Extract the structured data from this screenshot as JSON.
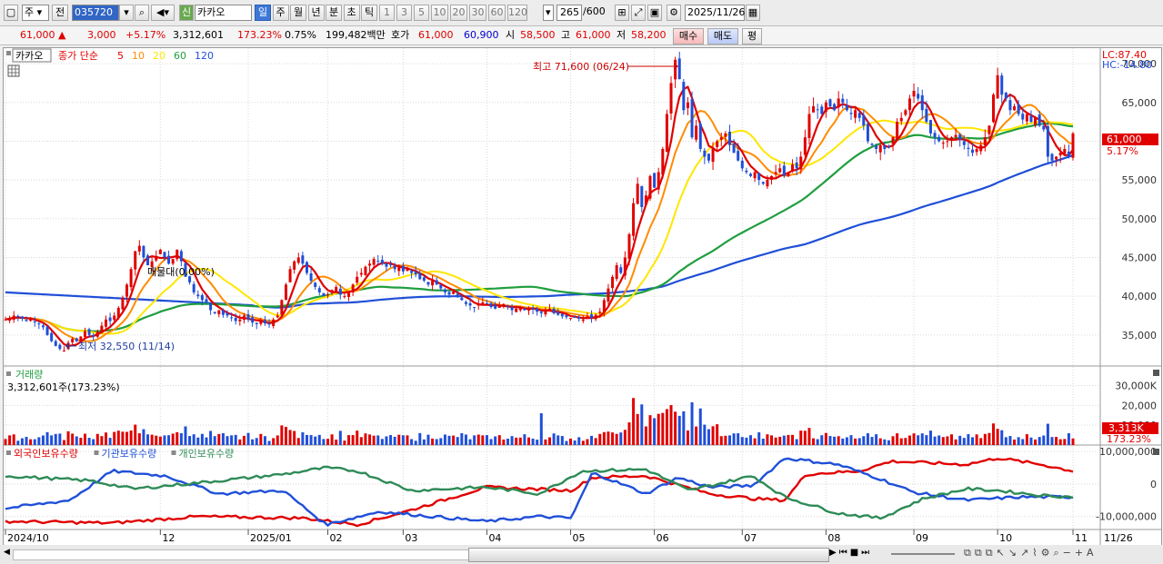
{
  "toolbar": {
    "period_select": "주",
    "prev_label": "전",
    "code": "035720",
    "credit_badge": "신",
    "stock_name": "카카오",
    "period_buttons": [
      "일",
      "주",
      "월",
      "년",
      "분",
      "초",
      "틱"
    ],
    "active_period": "일",
    "interval_buttons": [
      "1",
      "3",
      "5",
      "10",
      "20",
      "30",
      "60",
      "120"
    ],
    "count_value": "265",
    "count_max": "/600",
    "date": "2025/11/26"
  },
  "quote": {
    "price": "61,000",
    "change": "3,000",
    "change_rate": "+5.17%",
    "volume": "3,312,601",
    "volume_ratio": "173.23%",
    "turnover": "0.75%",
    "amount": "199,482백만",
    "bid_ask_label": "호가",
    "ask": "61,000",
    "bid": "60,900",
    "open_label": "시",
    "open": "58,500",
    "high_label": "고",
    "high": "61,000",
    "low_label": "저",
    "low": "58,200",
    "buy_label": "매수",
    "sell_label": "매도",
    "avg_label": "평"
  },
  "price_panel": {
    "name_tag": "카카오",
    "ma_label": "종가 단순",
    "ma_periods": [
      "5",
      "10",
      "20",
      "60",
      "120"
    ],
    "ma_colors": [
      "#e00000",
      "#ff8c00",
      "#ffe600",
      "#1f9e3e",
      "#1f4fd8"
    ],
    "lc_label": "LC:87.40",
    "hc_label": "HC:-14.80",
    "high_annotation": "최고 71,600 (06/24)",
    "low_annotation": "최저 32,550 (11/14)",
    "overlap_annotation": "매물대(0.00%)",
    "current_price_tag": "61,000",
    "current_rate_tag": "5.17%"
  },
  "volume_panel": {
    "title": "거래량",
    "value": "3,312,601주(173.23%)",
    "current_tag": "3,313K",
    "current_rate_tag": "173.23%"
  },
  "holding_panel": {
    "series": [
      {
        "name": "외국인보유수량",
        "color": "#e00000"
      },
      {
        "name": "기관보유수량",
        "color": "#1f4fd8"
      },
      {
        "name": "개인보유수량",
        "color": "#2e8b57"
      }
    ]
  },
  "x_axis": {
    "labels": [
      "2024/10",
      "12",
      "2025/01",
      "02",
      "03",
      "04",
      "05",
      "06",
      "07",
      "08",
      "09",
      "10",
      "11"
    ],
    "end_label": "11/26"
  },
  "chart_data": [
    {
      "type": "candlestick",
      "title": "카카오",
      "y_ticks": [
        35000,
        40000,
        45000,
        50000,
        55000,
        60000,
        65000,
        70000
      ],
      "y_tick_labels": [
        "35,000",
        "40,000",
        "45,000",
        "50,000",
        "55,000",
        "60,000",
        "65,000",
        "70,000"
      ],
      "ylim": [
        31000,
        72000
      ],
      "grid": true,
      "close": [
        37000,
        37200,
        37500,
        37300,
        37100,
        36800,
        37000,
        36700,
        36400,
        36000,
        35000,
        34200,
        33600,
        33200,
        33000,
        34000,
        34500,
        34200,
        34800,
        35500,
        35000,
        34800,
        35400,
        36200,
        37000,
        36800,
        37500,
        38500,
        39800,
        41500,
        43500,
        45800,
        46500,
        45000,
        44000,
        44500,
        45200,
        46000,
        45000,
        44200,
        44800,
        46000,
        44500,
        42500,
        41800,
        40500,
        40000,
        39500,
        39200,
        38200,
        37800,
        38200,
        37600,
        37500,
        37200,
        36800,
        37000,
        37500,
        37000,
        36600,
        36400,
        36800,
        36500,
        36400,
        37000,
        37500,
        39500,
        41500,
        43500,
        44500,
        45000,
        44200,
        43000,
        42000,
        41200,
        40500,
        40000,
        40200,
        40800,
        41200,
        40200,
        40000,
        40500,
        41500,
        42500,
        43000,
        43800,
        44200,
        44800,
        44500,
        44200,
        43800,
        44000,
        43500,
        43800,
        43200,
        43500,
        43000,
        42800,
        42200,
        42000,
        41500,
        42000,
        41500,
        41000,
        40500,
        40200,
        40600,
        40100,
        39500,
        39000,
        38800,
        38500,
        39000,
        39200,
        39000,
        38600,
        38400,
        38800,
        39000,
        38600,
        38200,
        38400,
        38600,
        38200,
        38500,
        38300,
        38000,
        37800,
        38200,
        38400,
        37800,
        37600,
        37400,
        37300,
        37200,
        37300,
        37100,
        37000,
        37400,
        37200,
        37600,
        38000,
        39500,
        41000,
        42500,
        44000,
        43000,
        45000,
        48000,
        52000,
        54500,
        51500,
        53000,
        55500,
        54000,
        56000,
        59000,
        63500,
        67500,
        70500,
        68000,
        64000,
        65000,
        60500,
        62000,
        59000,
        58000,
        57500,
        59000,
        60000,
        60500,
        61000,
        59500,
        58500,
        57500,
        56500,
        56000,
        55500,
        56000,
        55000,
        54500,
        55000,
        55500,
        56000,
        56500,
        55500,
        56000,
        57000,
        56500,
        58000,
        60500,
        63500,
        64500,
        64000,
        63500,
        65000,
        64500,
        64000,
        65500,
        65000,
        64000,
        63500,
        64000,
        63000,
        62000,
        60000,
        59500,
        59000,
        59500,
        59000,
        59200,
        60500,
        62500,
        63000,
        64000,
        65500,
        66500,
        65500,
        64000,
        62500,
        61000,
        60500,
        60000,
        59800,
        60000,
        60500,
        60800,
        60200,
        59500,
        59000,
        58500,
        59000,
        59500,
        60500,
        62000,
        66000,
        68500,
        66000,
        65500,
        64000,
        64500,
        63500,
        62800,
        63500,
        62500,
        63000,
        62000,
        61500,
        58000,
        57500,
        58000,
        58500,
        59000,
        58000,
        61000
      ]
    },
    {
      "type": "bar",
      "title": "거래량",
      "y_ticks": [
        10000,
        20000,
        30000
      ],
      "y_tick_labels": [
        "10,000",
        "20,000",
        "30,000K"
      ],
      "ylim": [
        0,
        38000
      ],
      "unit": "K"
    },
    {
      "type": "line",
      "title": "외국인보유수량 / 기관보유수량 / 개인보유수량",
      "y_ticks": [
        -10000000,
        0,
        10000000
      ],
      "y_tick_labels": [
        "-10,000,000",
        "0",
        "10,000,000"
      ],
      "ylim": [
        -14000000,
        12000000
      ]
    }
  ]
}
